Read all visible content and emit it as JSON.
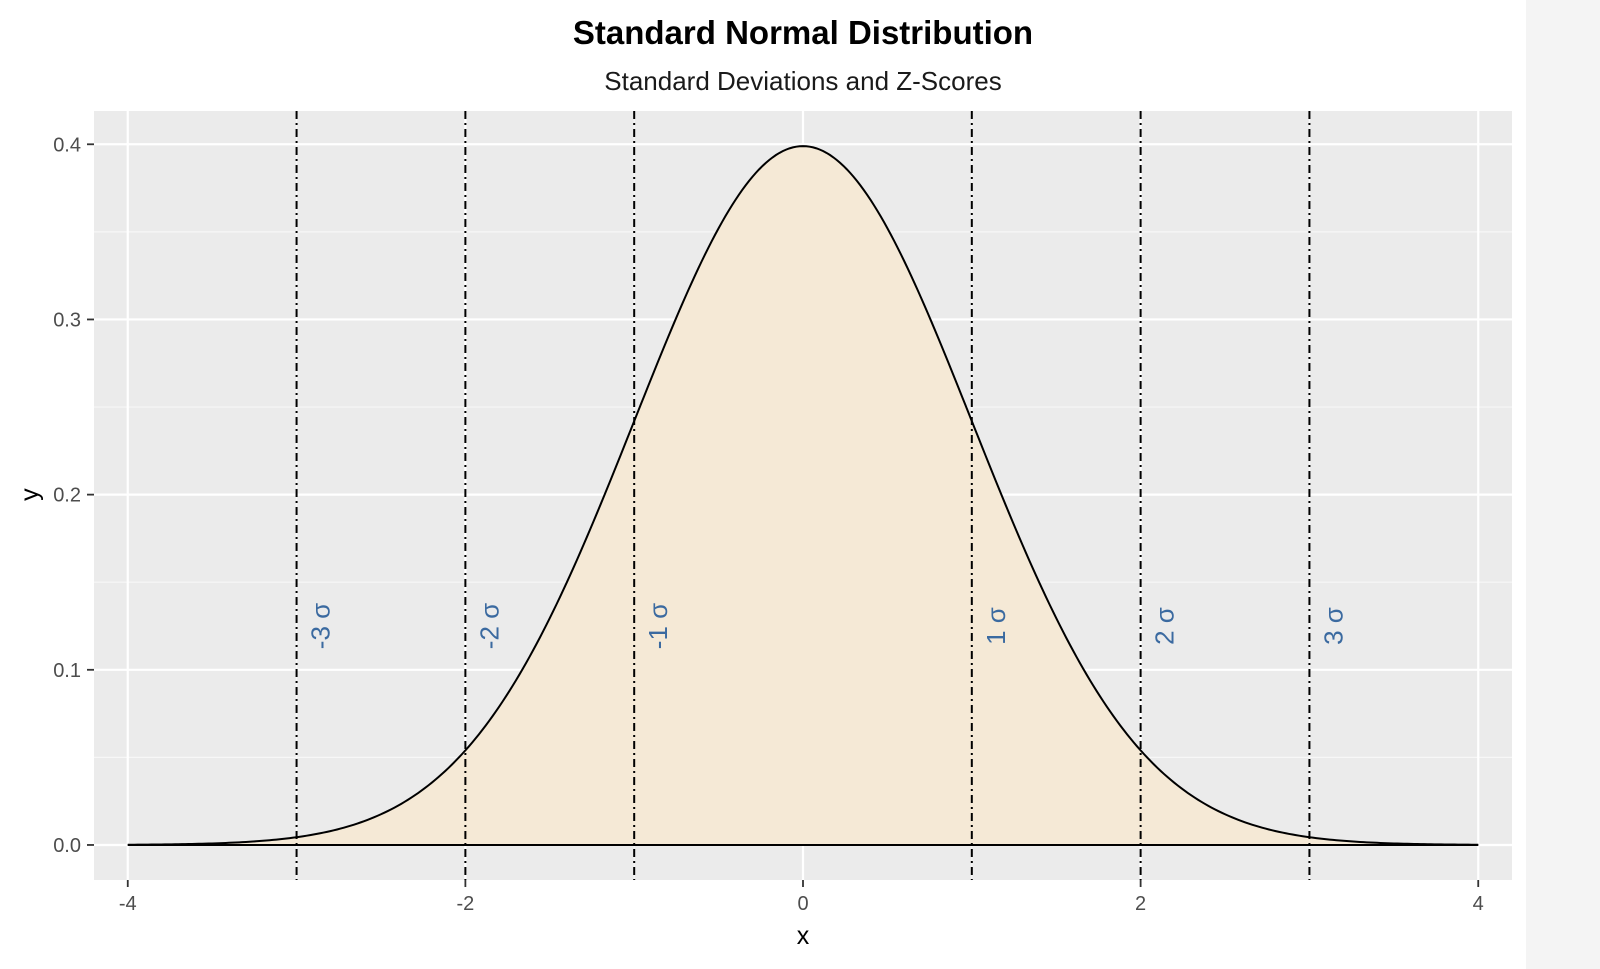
{
  "chart_data": {
    "type": "area",
    "title": "Standard Normal Distribution",
    "subtitle": "Standard Deviations and Z-Scores",
    "xlabel": "x",
    "ylabel": "y",
    "xlim": [
      -4.2,
      4.2
    ],
    "ylim": [
      -0.02,
      0.419
    ],
    "x_ticks": [
      -4,
      -2,
      0,
      2,
      4
    ],
    "y_ticks": [
      0.0,
      0.1,
      0.2,
      0.3,
      0.4
    ],
    "y_tick_labels": [
      "0.0",
      "0.1",
      "0.2",
      "0.3",
      "0.4"
    ],
    "curve": {
      "function": "standard normal density",
      "x_range": [
        -4,
        4
      ],
      "peak": 0.3989,
      "fill_color": "#f5e9d6",
      "line_color": "#000000"
    },
    "sigma_lines": [
      {
        "x": -3,
        "label": "-3 σ"
      },
      {
        "x": -2,
        "label": "-2 σ"
      },
      {
        "x": -1,
        "label": "-1 σ"
      },
      {
        "x": 1,
        "label": "1 σ"
      },
      {
        "x": 2,
        "label": "2 σ"
      },
      {
        "x": 3,
        "label": "3 σ"
      }
    ],
    "sigma_label_y": 0.125,
    "sigma_label_color": "#3b6aa0",
    "grid": true,
    "panel_background": "#ebebeb",
    "legend": "none"
  }
}
